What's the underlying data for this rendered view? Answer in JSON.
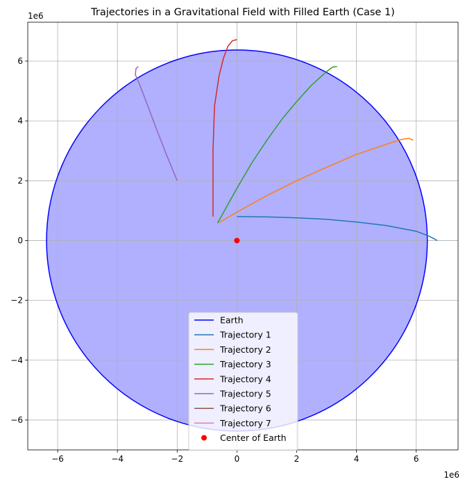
{
  "chart_data": {
    "type": "line",
    "title": "Trajectories in a Gravitational Field with Filled Earth (Case 1)",
    "xlabel": "",
    "ylabel": "",
    "x_offset_label": "1e6",
    "y_offset_label": "1e6",
    "xlim": [
      -7.0,
      7.4
    ],
    "ylim": [
      -7.0,
      7.3
    ],
    "xticks": [
      -6,
      -4,
      -2,
      0,
      2,
      4,
      6
    ],
    "yticks": [
      -6,
      -4,
      -2,
      0,
      2,
      4,
      6
    ],
    "grid": true,
    "legend_position": "lower-center",
    "earth": {
      "name": "Earth",
      "radius": 6.371,
      "edge_color": "#0000ff",
      "fill_color": "#b0b0ff"
    },
    "center": {
      "name": "Center of Earth",
      "x": 0,
      "y": 0,
      "color": "#ff0000"
    },
    "series": [
      {
        "name": "Trajectory 1",
        "color": "#1f77b4",
        "points": [
          [
            0,
            0.8
          ],
          [
            1,
            0.79
          ],
          [
            2,
            0.76
          ],
          [
            3,
            0.71
          ],
          [
            4,
            0.62
          ],
          [
            5,
            0.5
          ],
          [
            6,
            0.31
          ],
          [
            6.4,
            0.16
          ],
          [
            6.6,
            0.06
          ],
          [
            6.7,
            0.0
          ]
        ]
      },
      {
        "name": "Trajectory 2",
        "color": "#ff7f0e",
        "points": [
          [
            -0.6,
            0.6
          ],
          [
            0,
            0.95
          ],
          [
            1,
            1.5
          ],
          [
            2,
            2.0
          ],
          [
            3,
            2.45
          ],
          [
            4,
            2.88
          ],
          [
            5,
            3.22
          ],
          [
            5.5,
            3.38
          ],
          [
            5.75,
            3.42
          ],
          [
            5.9,
            3.35
          ]
        ]
      },
      {
        "name": "Trajectory 3",
        "color": "#2ca02c",
        "points": [
          [
            -0.65,
            0.58
          ],
          [
            0,
            1.75
          ],
          [
            0.5,
            2.6
          ],
          [
            1,
            3.35
          ],
          [
            1.5,
            4.05
          ],
          [
            2,
            4.65
          ],
          [
            2.5,
            5.2
          ],
          [
            3,
            5.65
          ],
          [
            3.2,
            5.8
          ],
          [
            3.35,
            5.82
          ]
        ]
      },
      {
        "name": "Trajectory 4",
        "color": "#d62728",
        "points": [
          [
            -0.8,
            0.8
          ],
          [
            -0.8,
            3.0
          ],
          [
            -0.75,
            4.5
          ],
          [
            -0.6,
            5.5
          ],
          [
            -0.45,
            6.1
          ],
          [
            -0.3,
            6.5
          ],
          [
            -0.15,
            6.68
          ],
          [
            0.0,
            6.72
          ]
        ]
      },
      {
        "name": "Trajectory 5",
        "color": "#9467bd",
        "points": [
          [
            -2.0,
            2.0
          ],
          [
            -2.35,
            2.85
          ],
          [
            -2.7,
            3.75
          ],
          [
            -3.0,
            4.55
          ],
          [
            -3.25,
            5.2
          ],
          [
            -3.4,
            5.55
          ],
          [
            -3.38,
            5.75
          ],
          [
            -3.3,
            5.82
          ]
        ]
      },
      {
        "name": "Trajectory 6",
        "color": "#8c564b",
        "points": []
      },
      {
        "name": "Trajectory 7",
        "color": "#e377c2",
        "points": []
      }
    ]
  }
}
